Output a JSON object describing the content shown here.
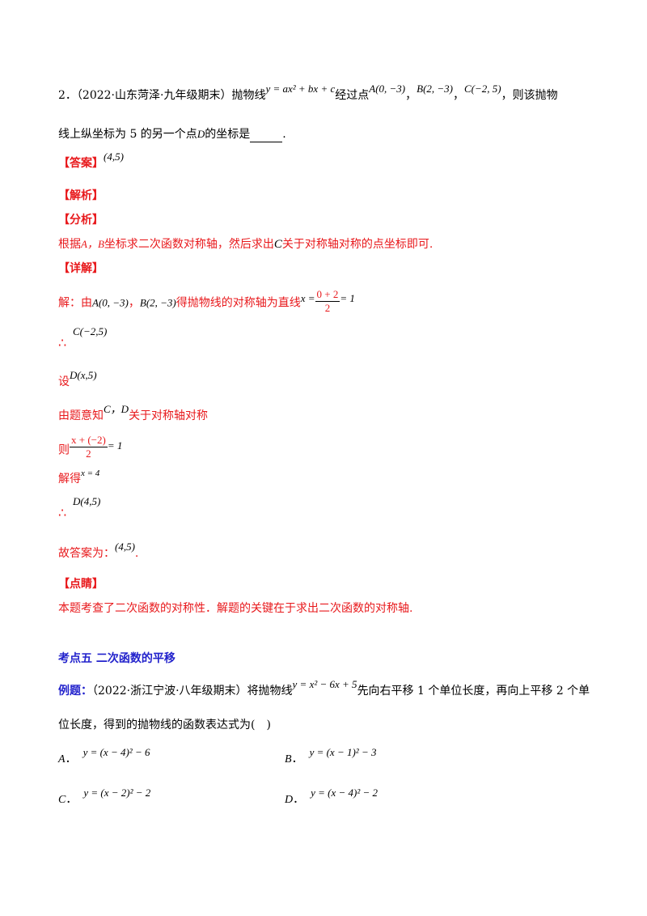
{
  "q2": {
    "num": "2．",
    "source": "（2022·山东菏泽·九年级期末）",
    "text1": "抛物线",
    "eq": "y = ax² + bx + c",
    "text2": "经过点",
    "pointA": "A(0, −3)",
    "sep1": "，",
    "pointB": "B(2, −3)",
    "sep2": "，",
    "pointC": "C(−2, 5)",
    "text3": "，则该抛物",
    "line2_a": "线上纵坐标为 5 的另一个点",
    "pointD": "D",
    "line2_b": "的坐标是",
    "end": "."
  },
  "answer": {
    "label": "【答案】",
    "value": "(4,5)"
  },
  "analysis_label": "【解析】",
  "fenxi": {
    "label": "【分析】",
    "text_a": "根据",
    "ab": "A，B",
    "text_b": "坐标求二次函数对称轴，然后求出",
    "c": "C",
    "text_c": "关于对称轴对称的点坐标即可."
  },
  "xiangjie": {
    "label": "【详解】",
    "s1_a": "解：由",
    "s1_A": "A(0, −3)",
    "s1_sep": "，",
    "s1_B": "B(2, −3)",
    "s1_b": "得抛物线的对称轴为直线",
    "s1_eq_lhs": "x =",
    "s1_num": "0 + 2",
    "s1_den": "2",
    "s1_eq_rhs": "= 1",
    "therefore": "∴",
    "s2_C": "C(−2,5)",
    "s3_a": "设",
    "s3_D": "D(x,5)",
    "s4_a": "由题意知",
    "s4_cd": "C，D",
    "s4_b": "关于对称轴对称",
    "s5_a": "则",
    "s5_num": "x + (−2)",
    "s5_den": "2",
    "s5_rhs": "= 1",
    "s6_a": "解得",
    "s6_eq": "x = 4",
    "s7_D": "D(4,5)",
    "s8_a": "故答案为：",
    "s8_val": "(4,5)",
    "s8_end": "."
  },
  "dianjing": {
    "label": "【点睛】",
    "text": "本题考查了二次函数的对称性．解题的关键在于求出二次函数的对称轴."
  },
  "section": {
    "title": "考点五  二次函数的平移"
  },
  "example": {
    "label": "例题：",
    "source": "（2022·浙江宁波·八年级期末）将抛物线",
    "eq": "y = x² − 6x + 5",
    "text1": "先向右平移 1 个单位长度，再向上平移 2 个单",
    "line2": "位长度，得到的抛物线的函数表达式为(　)"
  },
  "options": [
    {
      "letter": "A",
      "expr": "y = (x − 4)² − 6"
    },
    {
      "letter": "B",
      "expr": "y = (x − 1)² − 3"
    },
    {
      "letter": "C",
      "expr": "y = (x − 2)² − 2"
    },
    {
      "letter": "D",
      "expr": "y = (x − 4)² − 2"
    }
  ]
}
